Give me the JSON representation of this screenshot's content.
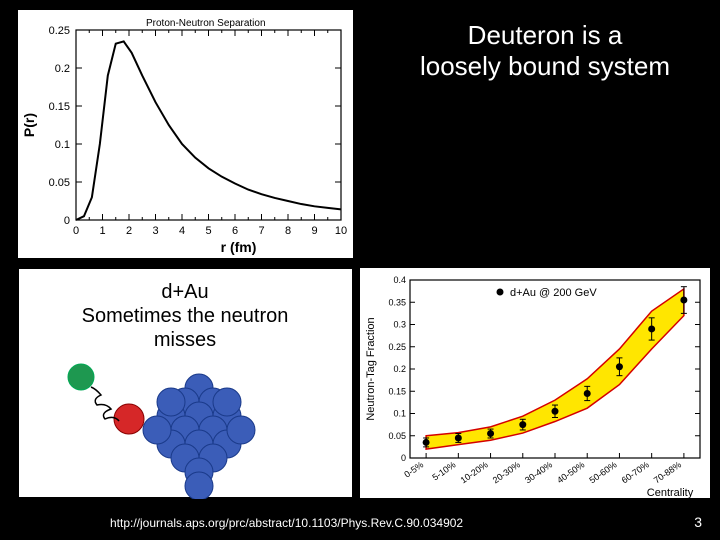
{
  "slide": {
    "bg": "#000000",
    "page_number": "3",
    "url": "http://journals.aps.org/prc/abstract/10.1103/Phys.Rev.C.90.034902"
  },
  "topright": {
    "line1": "Deuteron is a",
    "line2": "loosely bound system"
  },
  "topleft_chart": {
    "type": "line",
    "title": "Proton-Neutron Separation",
    "xlabel": "r (fm)",
    "ylabel": "P(r)",
    "xlim": [
      0,
      10
    ],
    "ylim": [
      0,
      0.25
    ],
    "xtick_step": 1,
    "ytick_step": 0.05,
    "line_color": "#000000",
    "line_width": 2,
    "background_color": "#ffffff",
    "curve": [
      [
        0.0,
        0.0
      ],
      [
        0.3,
        0.005
      ],
      [
        0.6,
        0.03
      ],
      [
        0.9,
        0.1
      ],
      [
        1.2,
        0.19
      ],
      [
        1.5,
        0.232
      ],
      [
        1.8,
        0.235
      ],
      [
        2.1,
        0.22
      ],
      [
        2.5,
        0.19
      ],
      [
        3.0,
        0.155
      ],
      [
        3.5,
        0.125
      ],
      [
        4.0,
        0.1
      ],
      [
        4.5,
        0.082
      ],
      [
        5.0,
        0.068
      ],
      [
        5.5,
        0.057
      ],
      [
        6.0,
        0.048
      ],
      [
        6.5,
        0.04
      ],
      [
        7.0,
        0.034
      ],
      [
        7.5,
        0.029
      ],
      [
        8.0,
        0.025
      ],
      [
        8.5,
        0.021
      ],
      [
        9.0,
        0.018
      ],
      [
        9.5,
        0.016
      ],
      [
        10.0,
        0.014
      ]
    ]
  },
  "bottomleft": {
    "line1": "d+Au",
    "line2": "Sometimes the neutron",
    "line3": "misses",
    "neutron_color": "#1e9850",
    "proton_color": "#d62728",
    "nucleus_color": "#3b5db8",
    "nucleus_stroke": "#1a3a8a",
    "trail_color": "#000000"
  },
  "bottomright_chart": {
    "type": "scatter-band",
    "xlabel": "Centrality",
    "ylabel": "Neutron-Tag Fraction",
    "ylim": [
      0,
      0.4
    ],
    "ytick_step": 0.05,
    "legend": "d+Au @ 200 GeV",
    "band_color": "#ffe600",
    "band_stroke": "#d40000",
    "marker_color": "#000000",
    "background_color": "#ffffff",
    "categories": [
      "0-5%",
      "5-10%",
      "10-20%",
      "20-30%",
      "30-40%",
      "40-50%",
      "50-60%",
      "60-70%",
      "70-88%"
    ],
    "values": [
      0.035,
      0.045,
      0.055,
      0.075,
      0.105,
      0.145,
      0.205,
      0.29,
      0.355
    ],
    "errors": [
      0.01,
      0.01,
      0.01,
      0.012,
      0.014,
      0.016,
      0.02,
      0.025,
      0.03
    ],
    "band_upper": [
      0.05,
      0.057,
      0.07,
      0.094,
      0.13,
      0.178,
      0.245,
      0.33,
      0.38
    ],
    "band_lower": [
      0.02,
      0.03,
      0.04,
      0.056,
      0.082,
      0.112,
      0.165,
      0.245,
      0.32
    ]
  }
}
